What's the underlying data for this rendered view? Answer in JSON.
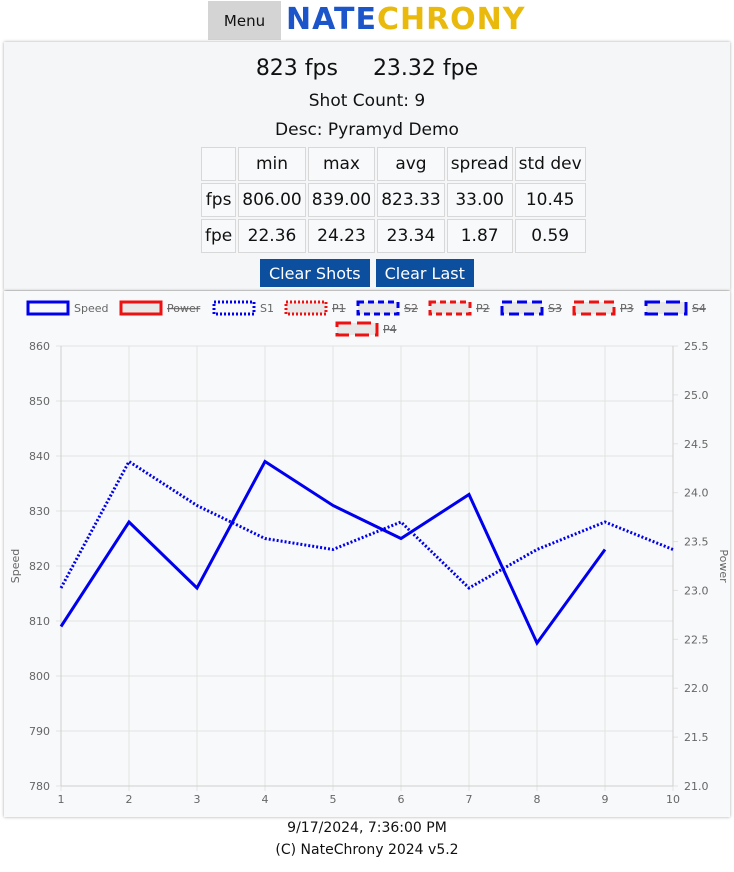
{
  "header": {
    "menu_label": "Menu",
    "logo_part1": "NATE",
    "logo_part2": "CHRONY",
    "logo_colors": {
      "part1": "#1b55c9",
      "part2": "#e9b90c"
    }
  },
  "reading": {
    "fps": "823 fps",
    "fpe": "23.32 fpe"
  },
  "shot_count": "Shot Count: 9",
  "description": "Desc: Pyramyd Demo",
  "stats_table": {
    "headers": [
      "",
      "min",
      "max",
      "avg",
      "spread",
      "std dev"
    ],
    "rows": [
      [
        "fps",
        "806.00",
        "839.00",
        "823.33",
        "33.00",
        "10.45"
      ],
      [
        "fpe",
        "22.36",
        "24.23",
        "23.34",
        "1.87",
        "0.59"
      ]
    ]
  },
  "buttons": {
    "clear_shots": "Clear Shots",
    "clear_last": "Clear Last"
  },
  "chart_data": {
    "type": "line",
    "legend_position": "top",
    "grid": true,
    "x": [
      1,
      2,
      3,
      4,
      5,
      6,
      7,
      8,
      9,
      10
    ],
    "xlabel": "",
    "ylabel_left": "Speed",
    "ylabel_right": "Power",
    "ylim_left": [
      780,
      860
    ],
    "ylim_right": [
      21.0,
      25.5
    ],
    "y_ticks_left": [
      "860",
      "850",
      "840",
      "830",
      "820",
      "810",
      "800",
      "790",
      "780"
    ],
    "y_ticks_right": [
      "25.5",
      "25.0",
      "24.5",
      "24.0",
      "23.5",
      "23.0",
      "22.5",
      "22.0",
      "21.5",
      "21.0"
    ],
    "x_ticks": [
      "1",
      "2",
      "3",
      "4",
      "5",
      "6",
      "7",
      "8",
      "9",
      "10"
    ],
    "legend": [
      {
        "name": "Speed",
        "color": "#0000ee",
        "dash": "solid",
        "hidden": false
      },
      {
        "name": "Power",
        "color": "#ee1111",
        "dash": "solid",
        "hidden": true
      },
      {
        "name": "S1",
        "color": "#0000ee",
        "dash": "dotted",
        "hidden": false
      },
      {
        "name": "P1",
        "color": "#ee1111",
        "dash": "dotted",
        "hidden": true
      },
      {
        "name": "S2",
        "color": "#0000ee",
        "dash": "short",
        "hidden": true
      },
      {
        "name": "P2",
        "color": "#ee1111",
        "dash": "short",
        "hidden": true
      },
      {
        "name": "S3",
        "color": "#0000ee",
        "dash": "long",
        "hidden": true
      },
      {
        "name": "P3",
        "color": "#ee1111",
        "dash": "long",
        "hidden": true
      },
      {
        "name": "S4",
        "color": "#0000ee",
        "dash": "xlong",
        "hidden": true
      },
      {
        "name": "P4",
        "color": "#ee1111",
        "dash": "xlong",
        "hidden": true
      }
    ],
    "series": [
      {
        "name": "Speed",
        "axis": "left",
        "x": [
          1,
          2,
          3,
          4,
          5,
          6,
          7,
          8,
          9
        ],
        "values": [
          809,
          828,
          816,
          839,
          831,
          825,
          833,
          806,
          823
        ]
      },
      {
        "name": "S1",
        "axis": "left",
        "x": [
          1,
          2,
          3,
          4,
          5,
          6,
          7,
          8,
          9,
          10
        ],
        "values": [
          816,
          839,
          831,
          825,
          823,
          828,
          816,
          823,
          828,
          823
        ]
      }
    ]
  },
  "footer": {
    "timestamp": "9/17/2024, 7:36:00 PM",
    "copyright": "(C) NateChrony 2024 v5.2"
  }
}
